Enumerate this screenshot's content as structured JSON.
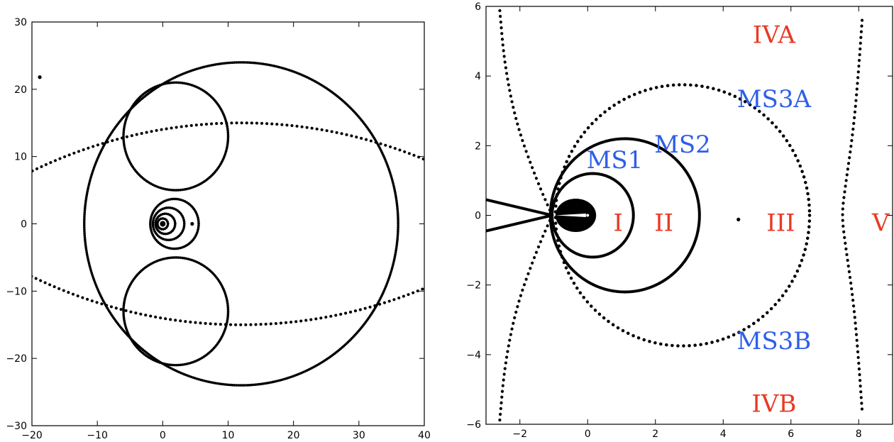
{
  "chart_data": [
    {
      "type": "scatter",
      "title": "",
      "xlabel": "",
      "ylabel": "",
      "xlim": [
        -20,
        40
      ],
      "ylim": [
        -30,
        30
      ],
      "xticks": [
        -20,
        -10,
        0,
        10,
        20,
        30,
        40
      ],
      "yticks": [
        -30,
        -20,
        -10,
        0,
        10,
        20,
        30
      ],
      "xtick_labels": [
        "−20",
        "−10",
        "0",
        "10",
        "20",
        "30",
        "40"
      ],
      "ytick_labels": [
        "−30",
        "−20",
        "−10",
        "0",
        "10",
        "20",
        "30"
      ],
      "grid": false,
      "marker_color": "#000000",
      "circles": [
        {
          "cx": 12,
          "cy": 0,
          "r": 24
        },
        {
          "cx": 2,
          "cy": 13,
          "r": 8
        },
        {
          "cx": 2,
          "cy": -13,
          "r": 8
        },
        {
          "cx": 1.8,
          "cy": 0,
          "r": 3.7
        },
        {
          "cx": 0.9,
          "cy": 0,
          "r": 2.4
        },
        {
          "cx": 0.4,
          "cy": 0,
          "r": 1.5
        },
        {
          "cx": 0,
          "cy": 0,
          "r": 0.8
        }
      ],
      "arcs": [
        {
          "cx": 12,
          "cy": -60,
          "r": 75,
          "from_deg": 60,
          "to_deg": 127,
          "dashed": true
        },
        {
          "cx": 12,
          "cy": 60,
          "r": 75,
          "from_deg": 233,
          "to_deg": 300,
          "dashed": true
        }
      ],
      "points": [
        {
          "x": -18.8,
          "y": 21.8
        },
        {
          "x": 4.5,
          "y": 0
        },
        {
          "x": 0,
          "y": 0
        }
      ]
    },
    {
      "type": "scatter",
      "title": "",
      "xlabel": "",
      "ylabel": "",
      "xlim": [
        -3,
        9
      ],
      "ylim": [
        -6,
        6
      ],
      "xticks": [
        -2,
        0,
        2,
        4,
        6,
        8
      ],
      "yticks": [
        -6,
        -4,
        -2,
        0,
        2,
        4,
        6
      ],
      "xtick_labels": [
        "−2",
        "0",
        "2",
        "4",
        "6",
        "8"
      ],
      "ytick_labels": [
        "−6",
        "−4",
        "−2",
        "0",
        "2",
        "4",
        "6"
      ],
      "grid": false,
      "marker_color": "#000000",
      "circles": [
        {
          "cx": 0.15,
          "cy": 0,
          "r": 1.2
        },
        {
          "cx": 1.1,
          "cy": 0,
          "r": 2.2
        }
      ],
      "dotted_circle": {
        "cx": 2.8,
        "cy": 0,
        "r": 3.75
      },
      "dotted_lines": [
        [
          [
            -1.05,
            0
          ],
          [
            -1.5,
            1.0
          ],
          [
            -2.1,
            2.6
          ],
          [
            -2.45,
            4.3
          ],
          [
            -2.6,
            5.95
          ]
        ],
        [
          [
            -1.05,
            0
          ],
          [
            -1.5,
            -1.0
          ],
          [
            -2.1,
            -2.6
          ],
          [
            -2.45,
            -4.3
          ],
          [
            -2.6,
            -5.95
          ]
        ],
        [
          [
            8.1,
            5.6
          ],
          [
            8.0,
            4.2
          ],
          [
            7.85,
            2.5
          ],
          [
            7.6,
            0.8
          ],
          [
            7.5,
            0
          ],
          [
            7.6,
            -0.8
          ],
          [
            7.85,
            -2.5
          ],
          [
            8.0,
            -4.2
          ],
          [
            8.1,
            -5.6
          ]
        ]
      ],
      "needle_lines": [
        [
          [
            -3,
            0.45
          ],
          [
            -1.05,
            0
          ]
        ],
        [
          [
            -3,
            -0.45
          ],
          [
            -1.05,
            0
          ]
        ]
      ],
      "blob": {
        "cx": -0.35,
        "cy": 0,
        "rx": 0.6,
        "ry": 0.48
      },
      "points": [
        {
          "x": 4.45,
          "y": -0.12
        }
      ],
      "annotations": [
        {
          "text": "IVA",
          "x": 5.5,
          "y": 5.2,
          "color": "#e83a24"
        },
        {
          "text": "MS3A",
          "x": 5.5,
          "y": 3.35,
          "color": "#2e5ee8"
        },
        {
          "text": "MS2",
          "x": 2.8,
          "y": 2.05,
          "color": "#2e5ee8"
        },
        {
          "text": "MS1",
          "x": 0.8,
          "y": 1.6,
          "color": "#2e5ee8"
        },
        {
          "text": "I",
          "x": 0.9,
          "y": -0.2,
          "color": "#e83a24"
        },
        {
          "text": "II",
          "x": 2.25,
          "y": -0.2,
          "color": "#e83a24"
        },
        {
          "text": "III",
          "x": 5.7,
          "y": -0.2,
          "color": "#e83a24"
        },
        {
          "text": "V",
          "x": 8.65,
          "y": -0.2,
          "color": "#e83a24"
        },
        {
          "text": "MS3B",
          "x": 5.5,
          "y": -3.6,
          "color": "#2e5ee8"
        },
        {
          "text": "IVB",
          "x": 5.5,
          "y": -5.4,
          "color": "#e83a24"
        }
      ]
    }
  ]
}
